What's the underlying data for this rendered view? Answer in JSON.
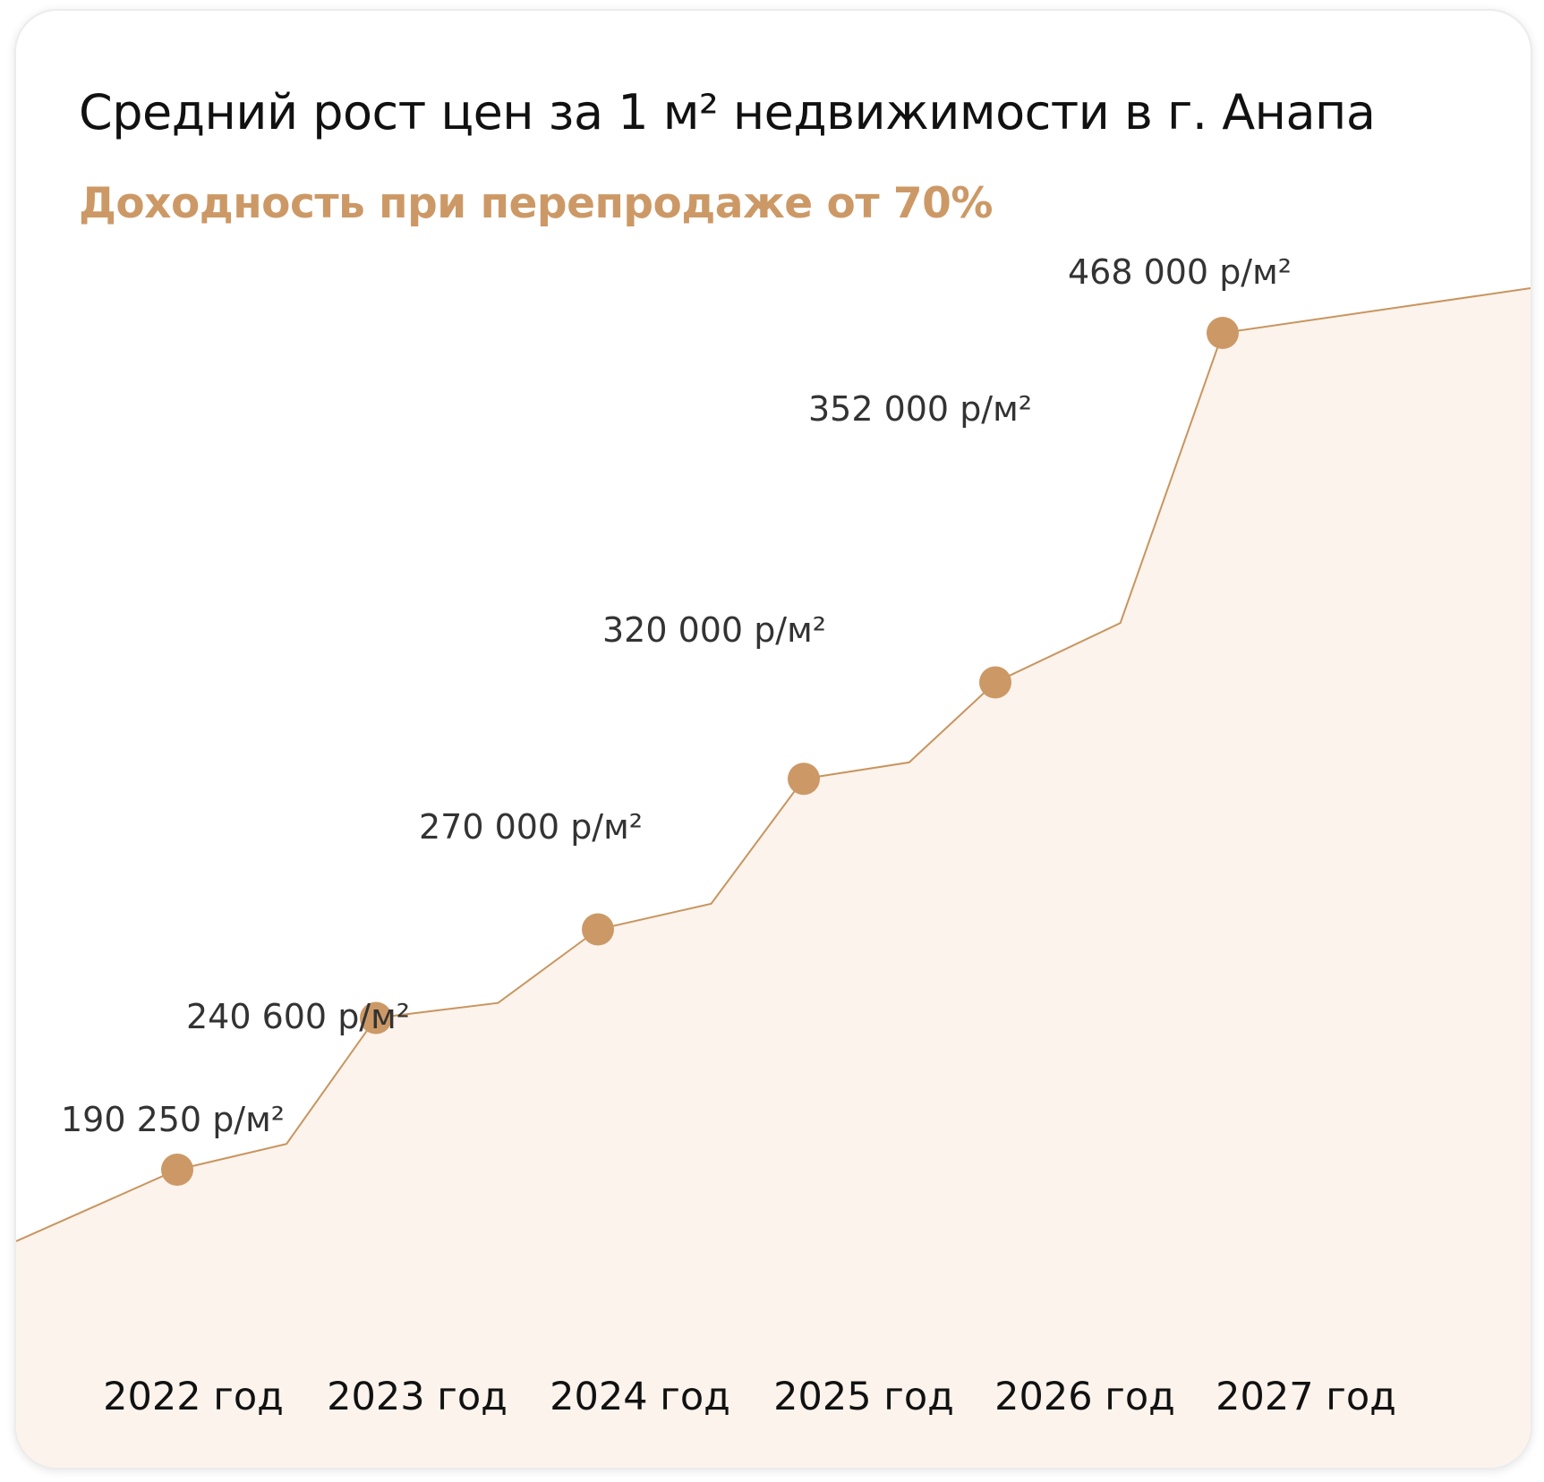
{
  "title": "Средний рост цен за 1 м² недвижимости в г. Анапа",
  "subtitle": "Доходность при перепродаже от 70%",
  "colors": {
    "accent": "#cc9966",
    "area_fill": "#fbf3ec",
    "line": "#c8955f",
    "text_dark": "#111111"
  },
  "chart_data": {
    "type": "area",
    "title": "Средний рост цен за 1 м² недвижимости в г. Анапа",
    "subtitle": "Доходность при перепродаже от 70%",
    "categories": [
      "2022 год",
      "2023 год",
      "2024 год",
      "2025 год",
      "2026 год",
      "2027 год"
    ],
    "series": [
      {
        "values": [
          190250,
          240600,
          270000,
          320000,
          352000,
          468000
        ],
        "labels": [
          "190 250 р/м²",
          "240 600 р/м²",
          "270 000 р/м²",
          "320 000 р/м²",
          "352 000 р/м²",
          "468 000 р/м²"
        ]
      }
    ],
    "ylim": [
      0,
      520000
    ],
    "grid": false,
    "legend": "none",
    "xlabel": "",
    "ylabel": ""
  }
}
